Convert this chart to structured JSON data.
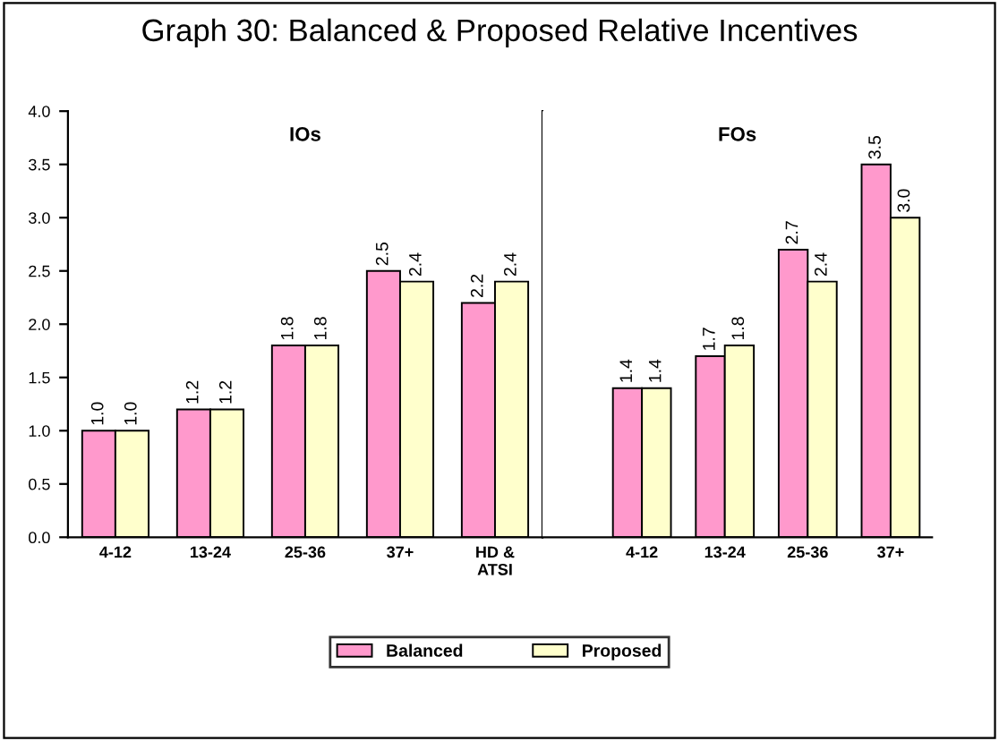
{
  "chart_data": [
    {
      "type": "bar",
      "title": "Graph 30: Balanced & Proposed Relative Incentives",
      "annotations": [
        "IOs"
      ],
      "categories": [
        "4-12",
        "13-24",
        "25-36",
        "37+",
        "HD &\nATSI"
      ],
      "series": [
        {
          "name": "Balanced",
          "color": "#ff99cc",
          "values": [
            1.0,
            1.2,
            1.8,
            2.5,
            2.2
          ],
          "value_labels": [
            "1.0",
            "1.2",
            "1.8",
            "2.5",
            "2.2"
          ]
        },
        {
          "name": "Proposed",
          "color": "#ffffcc",
          "values": [
            1.0,
            1.2,
            1.8,
            2.4,
            2.4
          ],
          "value_labels": [
            "1.0",
            "1.2",
            "1.8",
            "2.4",
            "2.4"
          ]
        }
      ],
      "ylim": [
        0,
        4
      ],
      "yticks": [
        {
          "value": 0,
          "label": "0.0"
        },
        {
          "value": 0.5,
          "label": "0.5"
        },
        {
          "value": 1,
          "label": "1.0"
        },
        {
          "value": 1.5,
          "label": "1.5"
        },
        {
          "value": 2,
          "label": "2.0"
        },
        {
          "value": 2.5,
          "label": "2.5"
        },
        {
          "value": 3,
          "label": "3.0"
        },
        {
          "value": 3.5,
          "label": "3.5"
        },
        {
          "value": 4,
          "label": "4.0"
        }
      ],
      "grid": false,
      "legend": "bottom"
    },
    {
      "type": "bar",
      "annotations": [
        "FOs"
      ],
      "categories": [
        "4-12",
        "13-24",
        "25-36",
        "37+"
      ],
      "series": [
        {
          "color": "#ff99cc",
          "values": [
            1.4,
            1.7,
            2.7,
            3.5
          ],
          "value_labels": [
            "1.4",
            "1.7",
            "2.7",
            "3.5"
          ]
        },
        {
          "color": "#ffffcc",
          "values": [
            1.4,
            1.8,
            2.4,
            3.0
          ],
          "value_labels": [
            "1.4",
            "1.8",
            "2.4",
            "3.0"
          ]
        }
      ],
      "ylim": [
        0,
        4
      ],
      "tick_labels": "x",
      "grid": false
    }
  ]
}
